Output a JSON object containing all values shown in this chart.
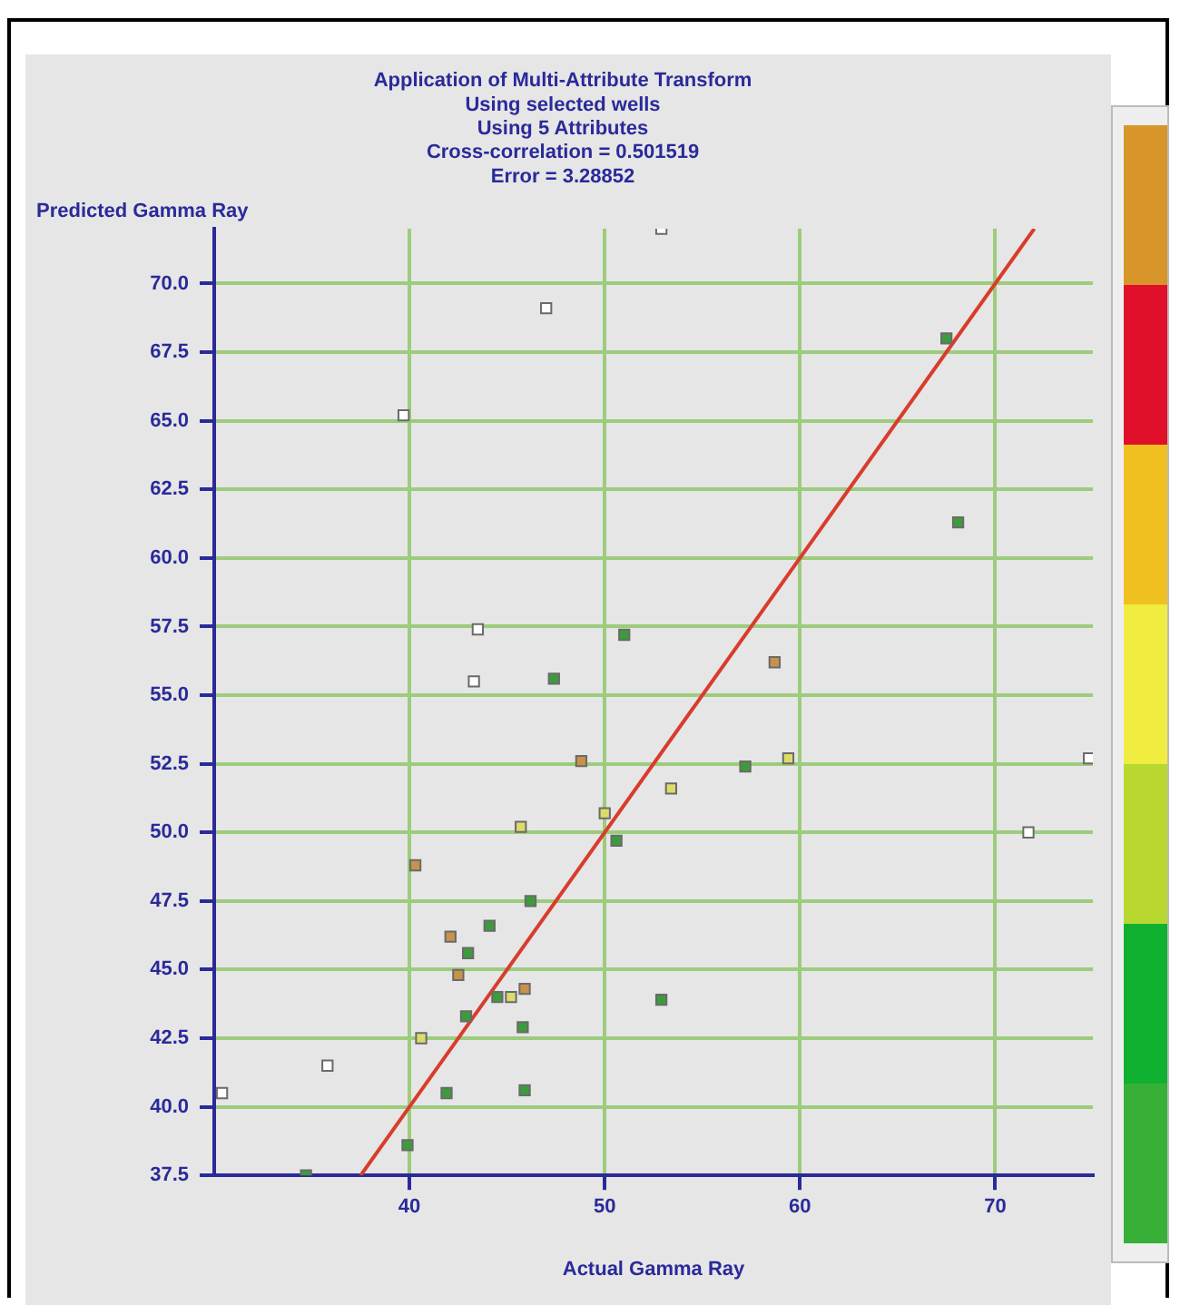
{
  "chart_data": {
    "type": "scatter",
    "title": "Application of Multi-Attribute Transform",
    "subtitle": "Using selected wells\nUsing 5 Attributes\nCross-correlation = 0.501519\nError = 3.28852",
    "xlabel": "Actual Gamma Ray",
    "ylabel": "Predicted Gamma Ray",
    "xlim": [
      30,
      75
    ],
    "ylim": [
      37.5,
      72
    ],
    "xticks": [
      40,
      50,
      60,
      70
    ],
    "yticks": [
      {
        "value": 37.5,
        "label": "37.5"
      },
      {
        "value": 40,
        "label": "40.0"
      },
      {
        "value": 42.5,
        "label": "42.5"
      },
      {
        "value": 45,
        "label": "45.0"
      },
      {
        "value": 47.5,
        "label": "47.5"
      },
      {
        "value": 50,
        "label": "50.0"
      },
      {
        "value": 52.5,
        "label": "52.5"
      },
      {
        "value": 55,
        "label": "55.0"
      },
      {
        "value": 57.5,
        "label": "57.5"
      },
      {
        "value": 60,
        "label": "60.0"
      },
      {
        "value": 62.5,
        "label": "62.5"
      },
      {
        "value": 65,
        "label": "65.0"
      },
      {
        "value": 67.5,
        "label": "67.5"
      },
      {
        "value": 70,
        "label": "70.0"
      }
    ],
    "grid": true,
    "legend": false,
    "marker": "square",
    "series": [
      {
        "color": "#ffffff",
        "x": [
          52.9,
          47.0,
          39.7,
          43.5,
          43.3,
          74.8,
          71.7,
          35.8,
          30.4
        ],
        "values": [
          72,
          69.1,
          65.2,
          57.4,
          55.5,
          52.7,
          50.0,
          41.5,
          40.5
        ]
      },
      {
        "color": "#3c9c3c",
        "x": [
          67.5,
          68.1,
          47.4,
          51.0,
          57.2,
          50.6,
          52.9,
          46.2,
          44.1,
          43.0,
          42.9,
          45.8,
          41.9,
          45.9,
          39.9,
          34.7,
          44.5
        ],
        "values": [
          68.0,
          61.3,
          55.6,
          57.2,
          52.4,
          49.7,
          43.9,
          47.5,
          46.6,
          45.6,
          43.3,
          42.9,
          40.5,
          40.6,
          38.6,
          37.5,
          44.0
        ]
      },
      {
        "color": "#c8924a",
        "x": [
          58.7,
          48.8,
          40.3,
          42.1,
          42.5,
          45.9
        ],
        "values": [
          56.2,
          52.6,
          48.8,
          46.2,
          44.8,
          44.3
        ]
      },
      {
        "color": "#dcdc6a",
        "x": [
          45.7,
          50.0,
          53.4,
          59.4,
          40.6,
          45.2
        ],
        "values": [
          50.2,
          50.7,
          51.6,
          52.7,
          42.5,
          44.0
        ]
      },
      {
        "type": "line",
        "color": "#d83c2c",
        "marker": "none",
        "x": [
          37.5,
          72
        ],
        "values": [
          37.5,
          72
        ]
      }
    ]
  }
}
